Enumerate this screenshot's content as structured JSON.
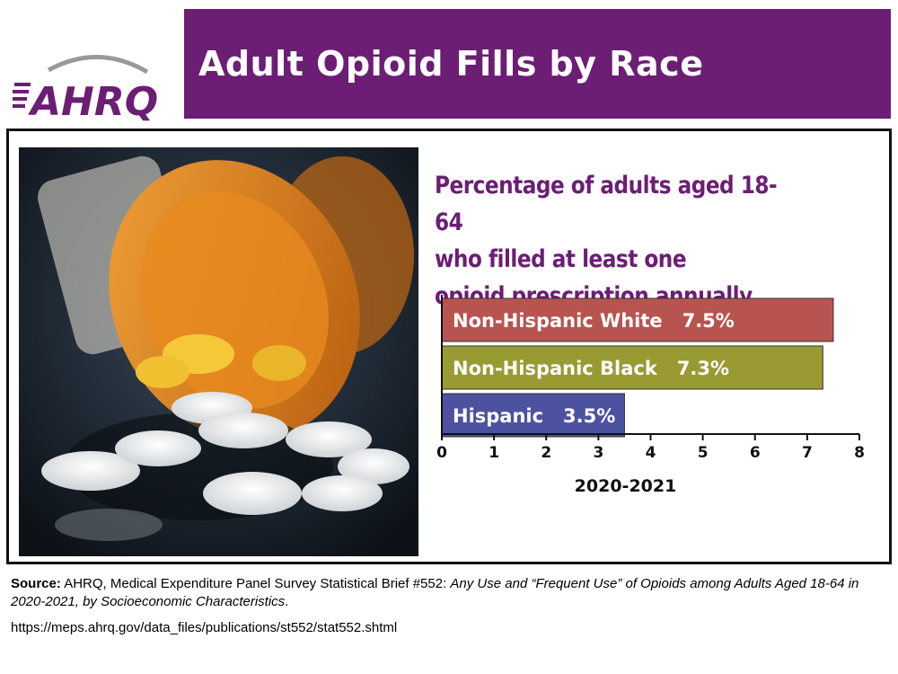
{
  "logo": {
    "text": "AHRQ"
  },
  "title": "Adult Opioid Fills by Race",
  "photo": {
    "description_icon": "pill-bottle-photo"
  },
  "chart_data": {
    "type": "bar",
    "orientation": "horizontal",
    "title_lines": [
      "Percentage of adults aged 18-64",
      "who filled at least one",
      "opioid prescription annually"
    ],
    "categories": [
      "Non-Hispanic White",
      "Non-Hispanic Black",
      "Hispanic"
    ],
    "values": [
      7.5,
      7.3,
      3.5
    ],
    "value_labels": [
      "7.5%",
      "7.3%",
      "3.5%"
    ],
    "colors": [
      "#b85450",
      "#9a9a33",
      "#4d52a0"
    ],
    "xticks": [
      "0",
      "1",
      "2",
      "3",
      "4",
      "5",
      "6",
      "7",
      "8"
    ],
    "xlim": [
      0,
      8
    ],
    "xlabel": "2020-2021",
    "grid": false
  },
  "source": {
    "label": "Source:",
    "text": " AHRQ, Medical Expenditure Panel Survey Statistical Brief #552: ",
    "italic_title": "Any Use and “Frequent Use” of Opioids among Adults Aged 18-64 in 2020-2021, by Socioeconomic Characteristics",
    "end": ".",
    "url": "https://meps.ahrq.gov/data_files/publications/st552/stat552.shtml"
  },
  "colors": {
    "brand_purple": "#6b1e74"
  }
}
